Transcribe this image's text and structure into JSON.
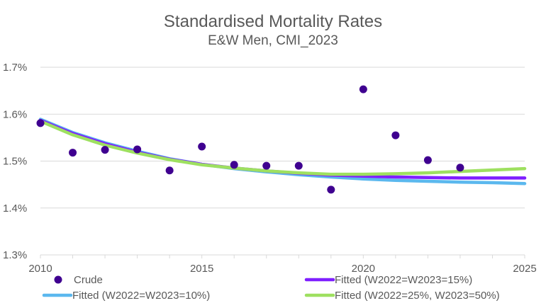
{
  "chart_data": {
    "type": "line",
    "title": "Standardised Mortality Rates",
    "subtitle": "E&W Men, CMI_2023",
    "xlabel": "",
    "ylabel": "",
    "xlim": [
      2010,
      2025
    ],
    "ylim": [
      1.3,
      1.7
    ],
    "x_ticks": [
      2010,
      2015,
      2020,
      2025
    ],
    "x_tick_labels": [
      "2010",
      "2015",
      "2020",
      "2025"
    ],
    "x_minor_step": 1,
    "y_ticks": [
      1.3,
      1.4,
      1.5,
      1.6,
      1.7
    ],
    "y_tick_labels": [
      "1.3%",
      "1.4%",
      "1.5%",
      "1.6%",
      "1.7%"
    ],
    "grid": true,
    "legend_position": "bottom",
    "series": [
      {
        "name": "Crude",
        "kind": "scatter",
        "color": "#3F0090",
        "x": [
          2010,
          2011,
          2012,
          2013,
          2014,
          2015,
          2016,
          2017,
          2018,
          2019,
          2020,
          2021,
          2022,
          2023
        ],
        "values": [
          1.581,
          1.518,
          1.524,
          1.525,
          1.48,
          1.531,
          1.492,
          1.49,
          1.49,
          1.439,
          1.653,
          1.555,
          1.502,
          1.486
        ]
      },
      {
        "name": "Fitted (W2022=W2023=15%)",
        "kind": "line",
        "color": "#7F1FFF",
        "x": [
          2010,
          2011,
          2012,
          2013,
          2014,
          2015,
          2016,
          2017,
          2018,
          2019,
          2020,
          2021,
          2022,
          2023,
          2024,
          2025
        ],
        "values": [
          1.587,
          1.559,
          1.537,
          1.519,
          1.504,
          1.493,
          1.485,
          1.479,
          1.474,
          1.47,
          1.468,
          1.466,
          1.465,
          1.464,
          1.464,
          1.464
        ]
      },
      {
        "name": "Fitted (W2022=W2023=10%)",
        "kind": "line",
        "color": "#5BB8EE",
        "x": [
          2010,
          2011,
          2012,
          2013,
          2014,
          2015,
          2016,
          2017,
          2018,
          2019,
          2020,
          2021,
          2022,
          2023,
          2024,
          2025
        ],
        "values": [
          1.589,
          1.561,
          1.539,
          1.521,
          1.505,
          1.493,
          1.484,
          1.477,
          1.471,
          1.466,
          1.462,
          1.459,
          1.457,
          1.455,
          1.454,
          1.452
        ]
      },
      {
        "name": "Fitted (W2022=25%, W2023=50%)",
        "kind": "line",
        "color": "#9EE060",
        "x": [
          2010,
          2011,
          2012,
          2013,
          2014,
          2015,
          2016,
          2017,
          2018,
          2019,
          2020,
          2021,
          2022,
          2023,
          2024,
          2025
        ],
        "values": [
          1.585,
          1.556,
          1.534,
          1.517,
          1.503,
          1.492,
          1.485,
          1.479,
          1.475,
          1.472,
          1.472,
          1.473,
          1.475,
          1.478,
          1.481,
          1.484
        ]
      }
    ],
    "legend_order": [
      0,
      2,
      1,
      3
    ]
  }
}
